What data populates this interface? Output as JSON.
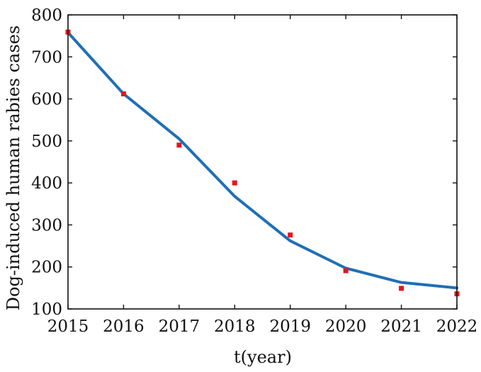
{
  "chart_data": {
    "type": "line",
    "xlabel": "t(year)",
    "ylabel": "Dog-induced human rabies cases",
    "xlim": [
      2015,
      2022
    ],
    "ylim": [
      100,
      800
    ],
    "xticks": [
      2015,
      2016,
      2017,
      2018,
      2019,
      2020,
      2021,
      2022
    ],
    "yticks": [
      100,
      200,
      300,
      400,
      500,
      600,
      700,
      800
    ],
    "grid": false,
    "legend": "none",
    "series": [
      {
        "kind": "line",
        "color": "#1f6fb5",
        "x": [
          2015,
          2016,
          2017,
          2018,
          2019,
          2020,
          2021,
          2022
        ],
        "y": [
          758,
          612,
          505,
          368,
          262,
          197,
          163,
          150
        ]
      },
      {
        "kind": "scatter",
        "color": "#e8141c",
        "x": [
          2015,
          2016,
          2017,
          2018,
          2019,
          2020,
          2021,
          2022
        ],
        "y": [
          759,
          612,
          490,
          400,
          276,
          191,
          149,
          136
        ]
      }
    ]
  }
}
